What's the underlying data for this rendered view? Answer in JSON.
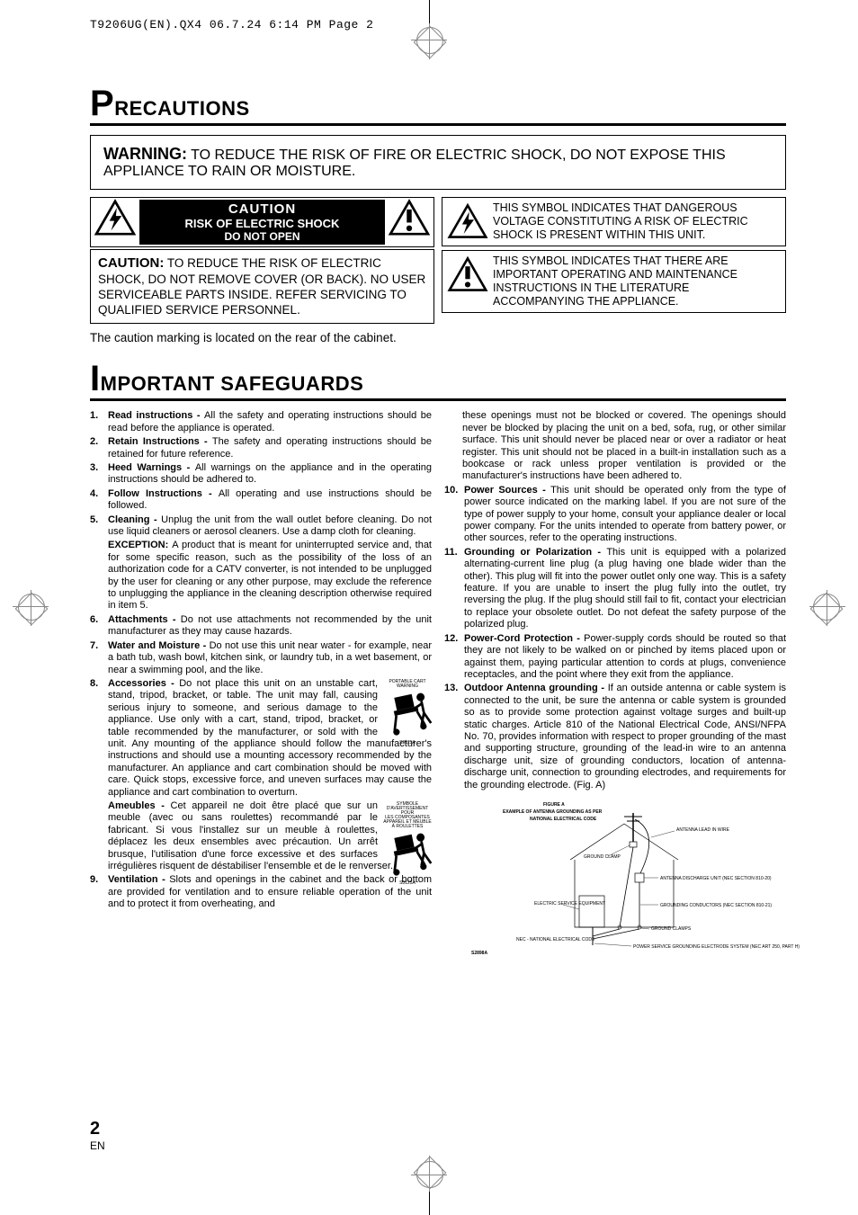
{
  "header": {
    "slug": "T9206UG(EN).QX4  06.7.24  6:14 PM  Page 2"
  },
  "precautions": {
    "title_initial": "P",
    "title_rest": "RECAUTIONS",
    "warning_label": "WARNING:",
    "warning_text": " TO REDUCE THE RISK OF FIRE OR ELECTRIC SHOCK, DO NOT EXPOSE THIS APPLIANCE TO RAIN OR MOISTURE.",
    "caution_badge": {
      "line1": "CAUTION",
      "line2": "RISK OF ELECTRIC SHOCK",
      "line3": "DO NOT OPEN"
    },
    "caution_block": {
      "label": "CAUTION:",
      "text": " TO REDUCE THE RISK OF ELECTRIC SHOCK, DO NOT REMOVE COVER (OR BACK). NO USER SERVICEABLE PARTS INSIDE. REFER SERVICING TO QUALIFIED SERVICE PERSONNEL."
    },
    "symbol_bolt": "THIS SYMBOL INDICATES THAT DANGEROUS VOLTAGE CONSTITUTING A RISK OF ELECTRIC SHOCK IS PRESENT WITHIN THIS UNIT.",
    "symbol_excl": "THIS SYMBOL INDICATES THAT THERE ARE IMPORTANT OPERATING AND MAINTENANCE INSTRUCTIONS IN THE LITERATURE ACCOMPANYING THE APPLIANCE.",
    "rear_note": "The caution marking is located on the rear of the cabinet."
  },
  "safeguards": {
    "title_initial": "I",
    "title_rest": "MPORTANT SAFEGUARDS",
    "cart_caption_en": "PORTABLE CART WARNING",
    "cart_code": "S3125A",
    "cart_caption_fr1": "SYMBOLE D'AVERTISSEMENT POUR",
    "cart_caption_fr2": "LES COMPOSANTES",
    "cart_caption_fr3": "APPAREIL ET MEUBLE À ROULETTES",
    "items_left": [
      {
        "n": "1.",
        "b": "Read instructions - ",
        "t": "All the safety and operating instructions should be read before the appliance is operated."
      },
      {
        "n": "2.",
        "b": "Retain Instructions - ",
        "t": "The safety and operating instructions should be retained for future reference."
      },
      {
        "n": "3.",
        "b": "Heed Warnings - ",
        "t": "All warnings on the appliance and in the operating instructions should be adhered to."
      },
      {
        "n": "4.",
        "b": "Follow Instructions - ",
        "t": "All operating and use instructions should be followed."
      },
      {
        "n": "5.",
        "b": "Cleaning - ",
        "t": "Unplug the unit from the wall outlet before cleaning. Do not use liquid cleaners or aerosol cleaners. Use a damp cloth for cleaning."
      },
      {
        "n": "",
        "b": "EXCEPTION: ",
        "t": "A product that is meant for uninterrupted service and, that for some specific reason, such as the possibility of the loss of an authorization code for a CATV converter, is not intended to be unplugged by the user for cleaning or any other purpose, may exclude the reference to unplugging the appliance in the cleaning description otherwise required in item 5.",
        "nonum": true
      },
      {
        "n": "6.",
        "b": "Attachments - ",
        "t": "Do not use attachments not recommended by the unit manufacturer as they may cause hazards."
      },
      {
        "n": "7.",
        "b": "Water and Moisture - ",
        "t": "Do not use this unit near water - for example, near a bath tub, wash bowl, kitchen sink, or laundry tub, in a wet basement, or near a swimming pool, and the like."
      },
      {
        "n": "8.",
        "b": "Accessories - ",
        "t": "Do not place this unit on an unstable cart, stand, tripod, bracket, or table. The unit may fall, causing serious injury to someone, and serious damage to the appliance. Use only with a cart, stand, tripod, bracket, or table recommended by the manufacturer, or sold with the unit. Any mounting of the appliance should follow the manufacturer's instructions and should use a mounting accessory recommended by the manufacturer. An appliance and cart combination should be moved with care. Quick stops, excessive force, and uneven surfaces may cause the appliance and cart combination to overturn.",
        "cart": "en"
      },
      {
        "n": "",
        "b": "Ameubles - ",
        "t": "Cet appareil ne doit être placé que sur un meuble (avec ou sans roulettes) recommandé par le fabricant. Si vous l'installez sur un meuble à roulettes, déplacez les deux ensembles avec précaution. Un arrêt brusque, l'utilisation d'une force excessive et des surfaces irrégulières risquent de déstabiliser l'ensemble et de le renverser.",
        "nonum": true,
        "cart": "fr"
      },
      {
        "n": "9.",
        "b": "Ventilation - ",
        "t": "Slots and openings in the cabinet and the back or bottom are provided for ventilation and to ensure reliable operation of the unit and to protect it from overheating, and"
      }
    ],
    "items_right": [
      {
        "n": "",
        "b": "",
        "t": "these openings must not be blocked or covered. The openings should never be blocked by placing the unit on a bed, sofa, rug, or other similar surface. This unit should never be placed near or over a radiator or heat register. This unit should not be placed in a built-in installation such as a bookcase or rack unless proper ventilation is provided or the manufacturer's instructions have been adhered to.",
        "nonum": true
      },
      {
        "n": "10.",
        "b": "Power Sources - ",
        "t": "This unit should be operated only from the type of power source indicated on the marking label. If you are not sure of the type of power supply to your home, consult your appliance dealer or local power company. For the units intended to operate from battery power, or other sources, refer to the operating instructions."
      },
      {
        "n": "11.",
        "b": "Grounding or Polarization - ",
        "t": "This unit is equipped with a polarized alternating-current line plug (a plug having one blade wider than the other). This plug will fit into the power outlet only one way. This is a safety feature. If you are unable to insert the plug fully into the outlet, try reversing the plug. If the plug should still fail to fit, contact your electrician to replace your obsolete outlet. Do not defeat the safety purpose of the polarized plug."
      },
      {
        "n": "12.",
        "b": "Power-Cord Protection - ",
        "t": "Power-supply cords should be routed so that they are not likely to be walked on or pinched by items placed upon or against them, paying particular attention to cords at plugs, convenience receptacles, and the point where they exit from the appliance."
      },
      {
        "n": "13.",
        "b": "Outdoor Antenna grounding - ",
        "t": "If an outside antenna or cable system is connected to the unit, be sure the antenna or cable system is grounded so as to provide some protection against voltage surges and built-up static charges. Article 810 of the National Electrical Code, ANSI/NFPA No. 70, provides information with respect to proper grounding of the mast and supporting structure, grounding of the lead-in wire to an antenna discharge unit, size of grounding conductors, location of antenna-discharge unit, connection to grounding electrodes, and requirements for the grounding electrode. (Fig. A)"
      }
    ],
    "diagram": {
      "title1": "FIGURE A",
      "title2": "EXAMPLE OF ANTENNA GROUNDING AS PER",
      "title3": "NATIONAL ELECTRICAL CODE",
      "labels": {
        "lead_in": "ANTENNA LEAD IN WIRE",
        "ground_clamp": "GROUND CLAMP",
        "discharge": "ANTENNA DISCHARGE UNIT (NEC SECTION 810-20)",
        "service": "ELECTRIC SERVICE EQUIPMENT",
        "conductors": "GROUNDING CONDUCTORS (NEC SECTION 810-21)",
        "ground_clamps": "GROUND CLAMPS",
        "electrode": "POWER SERVICE GROUNDING ELECTRODE SYSTEM (NEC ART 250, PART H)",
        "nec": "NEC - NATIONAL ELECTRICAL CODE",
        "code": "S2898A"
      }
    }
  },
  "page_number": {
    "n": "2",
    "en": "EN"
  }
}
